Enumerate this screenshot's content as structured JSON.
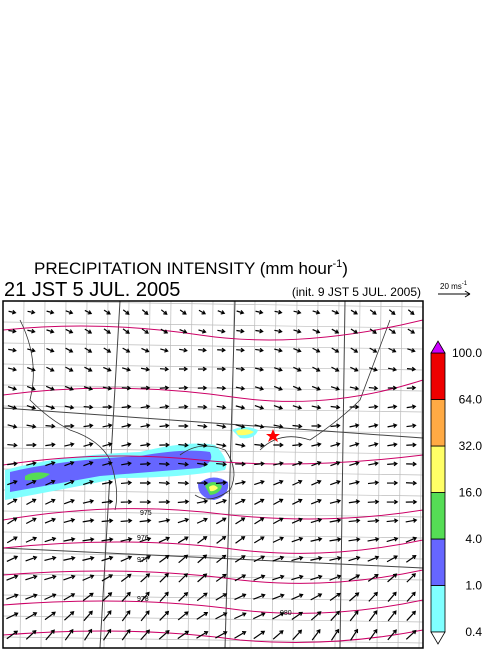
{
  "header": {
    "title": "PRECIPITATION INTENSITY (mm hour",
    "title_exponent": "-1",
    "title_close": ")",
    "valid_time": "21 JST 5 JUL. 2005",
    "init_time": "(init. 9 JST 5 JUL. 2005)"
  },
  "vector_reference": {
    "label": "20 ms",
    "exponent": "-1"
  },
  "colorbar": {
    "labels": [
      "0.4",
      "1.0",
      "4.0",
      "16.0",
      "32.0",
      "64.0",
      "100.0"
    ],
    "colors": [
      "#80ffff",
      "#6666ff",
      "#55dd55",
      "#ffff66",
      "#ffaa44",
      "#ee0000"
    ],
    "over_color": "#cc00ff",
    "under_color": "#ffffff"
  },
  "map": {
    "contour_labels": [
      "975",
      "976",
      "977",
      "978",
      "980"
    ]
  }
}
